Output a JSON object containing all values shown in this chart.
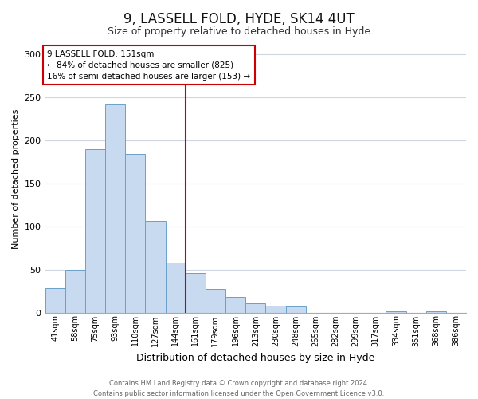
{
  "title": "9, LASSELL FOLD, HYDE, SK14 4UT",
  "subtitle": "Size of property relative to detached houses in Hyde",
  "xlabel": "Distribution of detached houses by size in Hyde",
  "ylabel": "Number of detached properties",
  "bar_labels": [
    "41sqm",
    "58sqm",
    "75sqm",
    "93sqm",
    "110sqm",
    "127sqm",
    "144sqm",
    "161sqm",
    "179sqm",
    "196sqm",
    "213sqm",
    "230sqm",
    "248sqm",
    "265sqm",
    "282sqm",
    "299sqm",
    "317sqm",
    "334sqm",
    "351sqm",
    "368sqm",
    "386sqm"
  ],
  "bar_values": [
    28,
    50,
    190,
    243,
    184,
    106,
    58,
    46,
    27,
    18,
    11,
    8,
    7,
    0,
    0,
    0,
    0,
    1,
    0,
    1,
    0
  ],
  "bar_color": "#c8daf0",
  "bar_edge_color": "#6aa0c8",
  "vline_x_index": 7,
  "vline_color": "#cc0000",
  "annotation_text": "9 LASSELL FOLD: 151sqm\n← 84% of detached houses are smaller (825)\n16% of semi-detached houses are larger (153) →",
  "annotation_box_edge": "#cc0000",
  "ylim": [
    0,
    310
  ],
  "yticks": [
    0,
    50,
    100,
    150,
    200,
    250,
    300
  ],
  "footer_line1": "Contains HM Land Registry data © Crown copyright and database right 2024.",
  "footer_line2": "Contains public sector information licensed under the Open Government Licence v3.0.",
  "background_color": "#ffffff",
  "grid_color": "#ccd5e0",
  "title_fontsize": 12,
  "subtitle_fontsize": 9,
  "xlabel_fontsize": 9,
  "ylabel_fontsize": 8,
  "tick_fontsize": 7,
  "footer_fontsize": 6,
  "annotation_fontsize": 7.5
}
